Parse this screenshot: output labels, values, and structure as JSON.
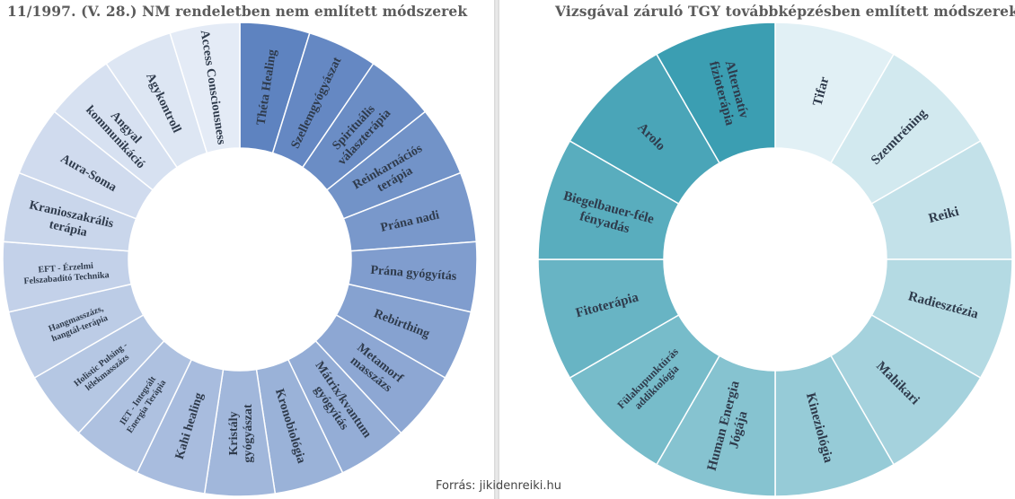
{
  "source_text": "Forrás: jikidenreiki.hu",
  "chart_data": [
    {
      "type": "pie",
      "variant": "donut",
      "title": "11/1997. (V. 28.) NM rendeletben nem említett módszerek",
      "colors": {
        "start": "#5e83c0",
        "end": "#e4ebf6",
        "stroke": "#ffffff"
      },
      "categories": [
        "Théta Healing",
        "Szellemgyógyászat",
        "Spirituális választerápia",
        "Reinkarnációs terápia",
        "Prána nadi",
        "Prána gyógyítás",
        "Rebirthing",
        "Metamorf masszázs",
        "Mátrix/kvantum gyógyítás",
        "Kronobiológia",
        "Kristály gyógyászat",
        "Kahi healing",
        "IET - Integrált Energia Terápia",
        "Holistic Pulsing - lélekmasszázs",
        "Hangmasszázs, hangtál-terápia",
        "EFT - Érzelmi Felszabadító Technika",
        "Kranioszakrális terápia",
        "Aura-Soma",
        "Angyal kommunikáció",
        "Agykontroll",
        "Access Consciousness"
      ],
      "values": [
        1,
        1,
        1,
        1,
        1,
        1,
        1,
        1,
        1,
        1,
        1,
        1,
        1,
        1,
        1,
        1,
        1,
        1,
        1,
        1,
        1
      ]
    },
    {
      "type": "pie",
      "variant": "donut",
      "title": "Vizsgával záruló TGY továbbképzésben említett módszerek",
      "colors": {
        "start": "#e1f0f5",
        "end": "#3b9eb2",
        "stroke": "#ffffff"
      },
      "categories": [
        "Tifar",
        "Szemtréning",
        "Reiki",
        "Radiesztézia",
        "Mahikari",
        "Kineziológia",
        "Human Energia Jógája",
        "Fülakupunktúrás addiktológia",
        "Fitoterápia",
        "Biegelbauer-féle fényadás",
        "Arolo",
        "Alternatív fizioterápia"
      ],
      "values": [
        1,
        1,
        1,
        1,
        1,
        1,
        1,
        1,
        1,
        1,
        1,
        1
      ]
    }
  ]
}
